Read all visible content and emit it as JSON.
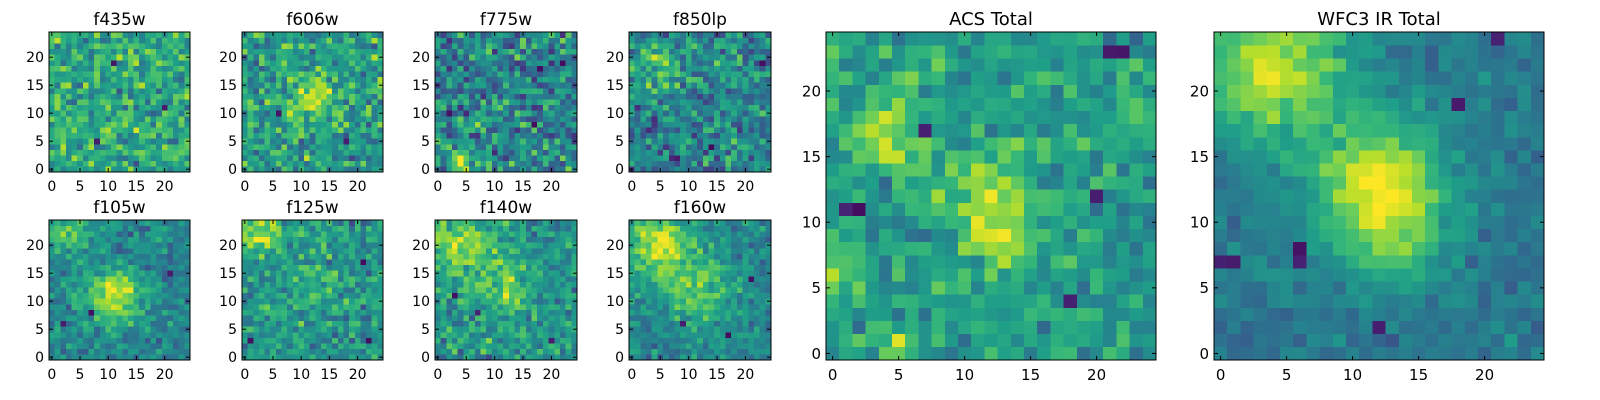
{
  "chart_data": [
    {
      "type": "heatmap",
      "title": "f435w",
      "xticks": [
        0,
        5,
        10,
        15,
        20
      ],
      "yticks": [
        0,
        5,
        10,
        15,
        20
      ],
      "xlim": [
        0,
        25
      ],
      "ylim": [
        0,
        25
      ],
      "grid_size": 25,
      "mean": 0.6,
      "spread": 0.2,
      "blobs": [],
      "dark_spots": [
        [
          20,
          11
        ],
        [
          11,
          19
        ],
        [
          8,
          5
        ]
      ],
      "seed": 11
    },
    {
      "type": "heatmap",
      "title": "f606w",
      "xticks": [
        0,
        5,
        10,
        15,
        20
      ],
      "yticks": [
        0,
        5,
        10,
        15,
        20
      ],
      "xlim": [
        0,
        25
      ],
      "ylim": [
        0,
        25
      ],
      "grid_size": 25,
      "mean": 0.55,
      "spread": 0.2,
      "blobs": [
        [
          12,
          13,
          3,
          0.3
        ]
      ],
      "dark_spots": [
        [
          6,
          10
        ],
        [
          18,
          5
        ]
      ],
      "seed": 23
    },
    {
      "type": "heatmap",
      "title": "f775w",
      "xticks": [
        0,
        5,
        10,
        15,
        20
      ],
      "yticks": [
        0,
        5,
        10,
        15,
        20
      ],
      "xlim": [
        0,
        25
      ],
      "ylim": [
        0,
        25
      ],
      "grid_size": 25,
      "mean": 0.45,
      "spread": 0.24,
      "blobs": [
        [
          4,
          1,
          2,
          0.4
        ]
      ],
      "dark_spots": [
        [
          22,
          19
        ],
        [
          2,
          10
        ],
        [
          17,
          8
        ]
      ],
      "seed": 37
    },
    {
      "type": "heatmap",
      "title": "f850lp",
      "xticks": [
        0,
        5,
        10,
        15,
        20
      ],
      "yticks": [
        0,
        5,
        10,
        15,
        20
      ],
      "xlim": [
        0,
        25
      ],
      "ylim": [
        0,
        25
      ],
      "grid_size": 25,
      "mean": 0.45,
      "spread": 0.22,
      "blobs": [
        [
          4,
          18,
          3,
          0.3
        ]
      ],
      "dark_spots": [
        [
          23,
          19
        ],
        [
          14,
          4
        ],
        [
          8,
          2
        ]
      ],
      "seed": 53
    },
    {
      "type": "heatmap",
      "title": "f105w",
      "xticks": [
        0,
        5,
        10,
        15,
        20
      ],
      "yticks": [
        0,
        5,
        10,
        15,
        20
      ],
      "xlim": [
        0,
        25
      ],
      "ylim": [
        0,
        25
      ],
      "grid_size": 25,
      "mean": 0.45,
      "spread": 0.13,
      "blobs": [
        [
          11,
          11,
          3.5,
          0.45
        ],
        [
          3,
          22,
          3,
          0.25
        ]
      ],
      "dark_spots": [
        [
          7,
          8
        ],
        [
          2,
          6
        ],
        [
          21,
          15
        ]
      ],
      "seed": 71
    },
    {
      "type": "heatmap",
      "title": "f125w",
      "xticks": [
        0,
        5,
        10,
        15,
        20
      ],
      "yticks": [
        0,
        5,
        10,
        15,
        20
      ],
      "xlim": [
        0,
        25
      ],
      "ylim": [
        0,
        25
      ],
      "grid_size": 25,
      "mean": 0.52,
      "spread": 0.17,
      "blobs": [
        [
          3,
          22,
          3,
          0.3
        ],
        [
          12,
          12,
          3,
          0.15
        ]
      ],
      "dark_spots": [
        [
          21,
          17
        ],
        [
          1,
          3
        ],
        [
          22,
          3
        ]
      ],
      "seed": 89
    },
    {
      "type": "heatmap",
      "title": "f140w",
      "xticks": [
        0,
        5,
        10,
        15,
        20
      ],
      "yticks": [
        0,
        5,
        10,
        15,
        20
      ],
      "xlim": [
        0,
        25
      ],
      "ylim": [
        0,
        25
      ],
      "grid_size": 25,
      "mean": 0.52,
      "spread": 0.16,
      "blobs": [
        [
          4,
          20,
          4,
          0.3
        ],
        [
          12,
          12,
          3,
          0.25
        ]
      ],
      "dark_spots": [
        [
          3,
          11
        ],
        [
          7,
          8
        ],
        [
          20,
          3
        ]
      ],
      "seed": 97
    },
    {
      "type": "heatmap",
      "title": "f160w",
      "xticks": [
        0,
        5,
        10,
        15,
        20
      ],
      "yticks": [
        0,
        5,
        10,
        15,
        20
      ],
      "xlim": [
        0,
        25
      ],
      "ylim": [
        0,
        25
      ],
      "grid_size": 25,
      "mean": 0.46,
      "spread": 0.13,
      "blobs": [
        [
          5,
          20,
          4,
          0.45
        ],
        [
          12,
          12,
          4,
          0.3
        ]
      ],
      "dark_spots": [
        [
          21,
          14
        ],
        [
          17,
          4
        ],
        [
          9,
          6
        ]
      ],
      "seed": 113
    },
    {
      "type": "heatmap",
      "title": "ACS Total",
      "xticks": [
        0,
        5,
        10,
        15,
        20
      ],
      "yticks": [
        0,
        5,
        10,
        15,
        20
      ],
      "xlim": [
        0,
        25
      ],
      "ylim": [
        0,
        25
      ],
      "grid_size": 25,
      "mean": 0.55,
      "spread": 0.14,
      "blobs": [
        [
          4,
          17,
          2,
          0.3
        ],
        [
          12,
          12,
          2.5,
          0.3
        ],
        [
          13,
          8,
          1.5,
          0.25
        ],
        [
          0,
          6,
          1,
          0.3
        ],
        [
          5,
          1,
          1,
          0.3
        ]
      ],
      "dark_spots": [
        [
          1,
          11
        ],
        [
          2,
          11
        ],
        [
          7,
          17
        ],
        [
          20,
          12
        ],
        [
          21,
          23
        ],
        [
          22,
          23
        ],
        [
          18,
          4
        ]
      ],
      "seed": 131
    },
    {
      "type": "heatmap",
      "title": "WFC3 IR Total",
      "xticks": [
        0,
        5,
        10,
        15,
        20
      ],
      "yticks": [
        0,
        5,
        10,
        15,
        20
      ],
      "xlim": [
        0,
        25
      ],
      "ylim": [
        0,
        25
      ],
      "grid_size": 25,
      "mean": 0.4,
      "spread": 0.08,
      "blobs": [
        [
          4,
          22,
          4,
          0.5
        ],
        [
          12,
          13,
          3.5,
          0.5
        ],
        [
          13,
          9,
          3,
          0.2
        ]
      ],
      "dark_spots": [
        [
          0,
          7
        ],
        [
          1,
          7
        ],
        [
          6,
          7
        ],
        [
          6,
          8
        ],
        [
          21,
          24
        ],
        [
          18,
          19
        ],
        [
          12,
          2
        ]
      ],
      "seed": 149
    }
  ]
}
